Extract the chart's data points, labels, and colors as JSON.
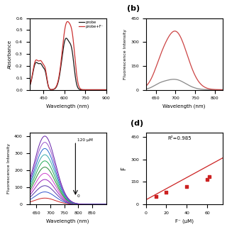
{
  "panel_a": {
    "probe_color": "#1a1a1a",
    "probe_plus_color": "#cc3333",
    "legend_labels": [
      "probe",
      "probe+F⁻"
    ],
    "xlabel": "Wavelength (nm)",
    "ylabel": "Absorbance",
    "xlim": [
      350,
      900
    ],
    "xticks": [
      450,
      600,
      750,
      900
    ]
  },
  "panel_b": {
    "title": "(b)",
    "probe_color": "#888888",
    "probe_plus_color": "#cc4444",
    "xlabel": "Wavelength (nm)",
    "ylabel": "Fluorescence Intensity",
    "xlim": [
      625,
      820
    ],
    "ylim": [
      0,
      450
    ],
    "yticks": [
      0,
      150,
      300,
      450
    ],
    "xticks": [
      650,
      700,
      750,
      800
    ]
  },
  "panel_c": {
    "xlabel": "Wavelength (nm)",
    "ylabel": "Fluorescence Intensity",
    "xlim": [
      625,
      900
    ],
    "xticks": [
      650,
      700,
      750,
      800,
      850
    ],
    "annotation_top": "120 μM",
    "annotation_bot": "0",
    "colors": [
      "#1a1a1a",
      "#cc2222",
      "#3355cc",
      "#5533aa",
      "#9922bb",
      "#cc44cc",
      "#228833",
      "#22aa55",
      "#33aaaa",
      "#2266cc",
      "#9955cc",
      "#6622aa"
    ]
  },
  "panel_d": {
    "title": "(d)",
    "r2_text": "R²=0.985",
    "xlabel": "F⁻ (μM)",
    "ylabel": "F",
    "xlim": [
      0,
      75
    ],
    "ylim": [
      0,
      480
    ],
    "yticks": [
      0,
      150,
      300,
      450
    ],
    "xticks": [
      0,
      20,
      40,
      60
    ],
    "scatter_x": [
      10,
      20,
      40,
      60,
      62
    ],
    "scatter_y": [
      50,
      80,
      120,
      165,
      185
    ],
    "line_x0": 0,
    "line_x1": 75,
    "line_y0": 30,
    "line_y1": 310,
    "line_color": "#cc2222",
    "scatter_color": "#cc2222"
  }
}
